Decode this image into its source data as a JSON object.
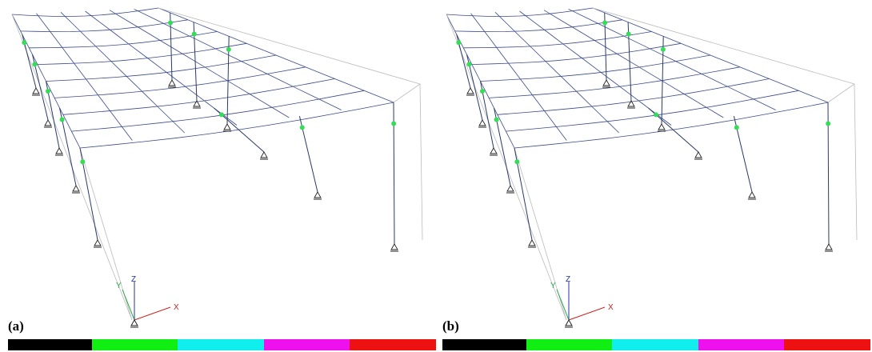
{
  "panels": [
    {
      "label": "(a)",
      "axes": {
        "x": "X",
        "y": "Y",
        "z": "Z"
      }
    },
    {
      "label": "(b)",
      "axes": {
        "x": "X",
        "y": "Y",
        "z": "Z"
      }
    }
  ]
}
